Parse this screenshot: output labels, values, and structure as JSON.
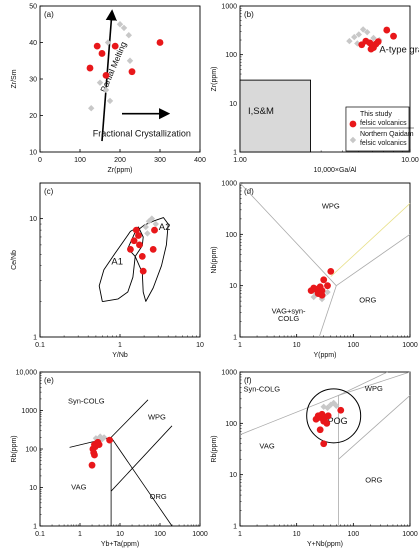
{
  "colors": {
    "study": "#e8171a",
    "qaidam": "#c8c8c8",
    "grey_field": "#d9d9d9",
    "line": "#000000",
    "light_line": "#aaaaaa",
    "pale_line": "#e8e08a"
  },
  "chart_data": [
    {
      "id": "a",
      "type": "scatter",
      "panel_label": "(a)",
      "xlabel": "Zr(ppm)",
      "ylabel": "Zr/Sm",
      "xlim": [
        0,
        400
      ],
      "ylim": [
        10,
        50
      ],
      "xticks": [
        "0",
        "100",
        "200",
        "300",
        "400"
      ],
      "yticks": [
        "10",
        "20",
        "30",
        "40",
        "50"
      ],
      "annotations": {
        "partial_melting": "Partial Melting",
        "fractional_crystallization": "Fractional Crystallization"
      },
      "series": [
        {
          "name": "This study felsic volcanics",
          "role": "study",
          "points": [
            [
              125,
              33
            ],
            [
              143,
              39
            ],
            [
              155,
              37
            ],
            [
              165,
              31
            ],
            [
              188,
              39
            ],
            [
              230,
              32
            ],
            [
              300,
              40
            ]
          ]
        },
        {
          "name": "Northern Qaidam felsic volcanics",
          "role": "qaidam",
          "points": [
            [
              128,
              22
            ],
            [
              150,
              29
            ],
            [
              165,
              27
            ],
            [
              175,
              24
            ],
            [
              200,
              45
            ],
            [
              210,
              44
            ],
            [
              225,
              35
            ],
            [
              222,
              42
            ],
            [
              170,
              40
            ]
          ]
        }
      ]
    },
    {
      "id": "b",
      "type": "scatter",
      "panel_label": "(b)",
      "xlabel": "10,000×Ga/Al",
      "ylabel": "Zr(ppm)",
      "xscale": "log",
      "yscale": "log",
      "xlim": [
        1,
        10
      ],
      "ylim": [
        1,
        1000
      ],
      "xticks": [
        "1.00",
        "10.00"
      ],
      "yticks": [
        "1",
        "10",
        "100",
        "1000"
      ],
      "fields": {
        "granite_label": "A-type granite",
        "isandm_label": "I,S&M"
      },
      "legend": {
        "study_line1": "This study",
        "study_line2": "felsic volcanics",
        "qaidam_line1": "Northern Qaidam",
        "qaidam_line2": "felsic volcanics"
      },
      "series": [
        {
          "name": "This study felsic volcanics",
          "role": "study",
          "points": [
            [
              5.2,
              160
            ],
            [
              5.5,
              190
            ],
            [
              5.8,
              175
            ],
            [
              6.0,
              150
            ],
            [
              5.9,
              130
            ],
            [
              6.1,
              140
            ],
            [
              6.3,
              165
            ],
            [
              6.5,
              185
            ],
            [
              7.3,
              320
            ],
            [
              8.0,
              240
            ]
          ]
        },
        {
          "name": "Northern Qaidam felsic volcanics",
          "role": "qaidam",
          "points": [
            [
              4.4,
              190
            ],
            [
              4.7,
              230
            ],
            [
              5.0,
              260
            ],
            [
              5.3,
              330
            ],
            [
              5.6,
              290
            ],
            [
              6.6,
              200
            ],
            [
              6.1,
              220
            ],
            [
              4.9,
              170
            ]
          ]
        }
      ]
    },
    {
      "id": "c",
      "type": "scatter",
      "panel_label": "(c)",
      "xlabel": "Y/Nb",
      "ylabel": "Ce/Nb",
      "xscale": "log",
      "yscale": "log",
      "xlim": [
        0.1,
        10
      ],
      "ylim": [
        1,
        20
      ],
      "xticks": [
        "0.1",
        "1",
        "10"
      ],
      "yticks": [
        "1",
        "10"
      ],
      "fields": {
        "a1_label": "A1",
        "a2_label": "A2"
      },
      "series": [
        {
          "name": "This study felsic volcanics",
          "role": "study",
          "points": [
            [
              1.35,
              5.5
            ],
            [
              1.5,
              6.5
            ],
            [
              1.6,
              8.0
            ],
            [
              1.7,
              7.2
            ],
            [
              1.75,
              6.0
            ],
            [
              1.9,
              4.8
            ],
            [
              1.95,
              3.6
            ],
            [
              2.6,
              5.5
            ],
            [
              2.7,
              8.0
            ]
          ]
        },
        {
          "name": "Northern Qaidam felsic volcanics",
          "role": "qaidam",
          "points": [
            [
              2.1,
              8.5
            ],
            [
              2.3,
              9.5
            ],
            [
              2.5,
              10.0
            ],
            [
              2.8,
              9.0
            ],
            [
              2.2,
              7.5
            ]
          ]
        }
      ]
    },
    {
      "id": "d",
      "type": "scatter",
      "panel_label": "(d)",
      "xlabel": "Y(ppm)",
      "ylabel": "Nb(ppm)",
      "xscale": "log",
      "yscale": "log",
      "xlim": [
        1,
        1000
      ],
      "ylim": [
        1,
        1000
      ],
      "xticks": [
        "1",
        "10",
        "100",
        "1000"
      ],
      "yticks": [
        "1",
        "10",
        "100",
        "1000"
      ],
      "fields": {
        "wpg": "WPG",
        "vag_line1": "VAG+syn-",
        "vag_line2": "COLG",
        "org": "ORG"
      },
      "series": [
        {
          "name": "This study felsic volcanics",
          "role": "study",
          "points": [
            [
              18,
              8
            ],
            [
              20,
              9
            ],
            [
              22,
              8.5
            ],
            [
              24,
              7
            ],
            [
              26,
              9.5
            ],
            [
              28,
              8
            ],
            [
              30,
              13
            ],
            [
              40,
              19
            ],
            [
              35,
              10
            ],
            [
              28,
              6.5
            ]
          ]
        },
        {
          "name": "Northern Qaidam felsic volcanics",
          "role": "qaidam",
          "points": [
            [
              20,
              6
            ],
            [
              25,
              7
            ],
            [
              30,
              6.5
            ],
            [
              35,
              7.5
            ],
            [
              22,
              7
            ],
            [
              28,
              5.5
            ]
          ]
        }
      ]
    },
    {
      "id": "e",
      "type": "scatter",
      "panel_label": "(e)",
      "xlabel": "Yb+Ta(ppm)",
      "ylabel": "Rb(ppm)",
      "xscale": "log",
      "yscale": "log",
      "xlim": [
        0.1,
        1000
      ],
      "ylim": [
        1,
        10000
      ],
      "xticks": [
        "0.1",
        "1",
        "10",
        "100",
        "1000"
      ],
      "yticks": [
        "1",
        "10",
        "100",
        "1000",
        "10,000"
      ],
      "fields": {
        "syn_colg": "Syn-COLG",
        "wpg": "WPG",
        "vag": "VAG",
        "org": "ORG"
      },
      "series": [
        {
          "name": "This study felsic volcanics",
          "role": "study",
          "points": [
            [
              2.1,
              100
            ],
            [
              2.3,
              130
            ],
            [
              2.4,
              115
            ],
            [
              2.6,
              140
            ],
            [
              2.8,
              150
            ],
            [
              3.0,
              130
            ],
            [
              2.2,
              80
            ],
            [
              2.3,
              70
            ],
            [
              2.0,
              38
            ],
            [
              5.5,
              170
            ]
          ]
        },
        {
          "name": "Northern Qaidam felsic volcanics",
          "role": "qaidam",
          "points": [
            [
              2.5,
              190
            ],
            [
              3.2,
              210
            ],
            [
              4.0,
              200
            ],
            [
              3.6,
              180
            ]
          ]
        }
      ]
    },
    {
      "id": "f",
      "type": "scatter",
      "panel_label": "(f)",
      "xlabel": "Y+Nb(ppm)",
      "ylabel": "Rb(ppm)",
      "xscale": "log",
      "yscale": "log",
      "xlim": [
        1,
        1000
      ],
      "ylim": [
        1,
        1000
      ],
      "xticks": [
        "1",
        "10",
        "100",
        "1000"
      ],
      "yticks": [
        "1",
        "10",
        "100",
        "1000"
      ],
      "fields": {
        "syn_colg": "Syn-COLG",
        "wpg": "WPG",
        "vag": "VAG",
        "org": "ORG",
        "pog": "POG"
      },
      "series": [
        {
          "name": "This study felsic volcanics",
          "role": "study",
          "points": [
            [
              22,
              120
            ],
            [
              24,
              140
            ],
            [
              26,
              130
            ],
            [
              28,
              150
            ],
            [
              30,
              110
            ],
            [
              32,
              130
            ],
            [
              34,
              100
            ],
            [
              26,
              75
            ],
            [
              30,
              40
            ],
            [
              60,
              180
            ],
            [
              36,
              140
            ]
          ]
        },
        {
          "name": "Northern Qaidam felsic volcanics",
          "role": "qaidam",
          "points": [
            [
              35,
              200
            ],
            [
              40,
              230
            ],
            [
              45,
              250
            ],
            [
              30,
              210
            ],
            [
              50,
              220
            ]
          ]
        }
      ]
    }
  ]
}
